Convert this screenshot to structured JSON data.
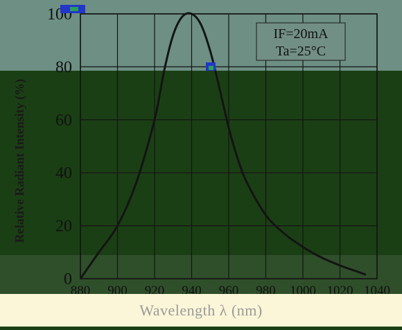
{
  "chart_data": {
    "type": "line",
    "title": "",
    "xlabel": "Wavelength  λ  (nm)",
    "ylabel": "Relative Radiant Intensity (%)",
    "xlim": [
      880,
      1040
    ],
    "ylim": [
      0,
      100
    ],
    "x_ticks": [
      "880",
      "900",
      "920",
      "940",
      "960",
      "980",
      "1000",
      "1020",
      "1040"
    ],
    "y_ticks": [
      "0",
      "20",
      "40",
      "60",
      "80",
      "100"
    ],
    "grid": true,
    "annotations": [
      "IF=20mA",
      "Ta=25°C"
    ],
    "series": [
      {
        "x": [
          880,
          890,
          900,
          910,
          920,
          925,
          930,
          935,
          940,
          945,
          950,
          955,
          960,
          965,
          970,
          980,
          990,
          1000,
          1010,
          1020,
          1030,
          1034
        ],
        "values": [
          0,
          10,
          20,
          36,
          60,
          78,
          92,
          99,
          100,
          96,
          86,
          72,
          57,
          45,
          36,
          24,
          17,
          12,
          8,
          5,
          2.5,
          1.5
        ]
      }
    ]
  },
  "colors": {
    "background": "#1b3f14",
    "top_band": "#6d8f84",
    "curve": "#141414",
    "grid": "#141414"
  }
}
